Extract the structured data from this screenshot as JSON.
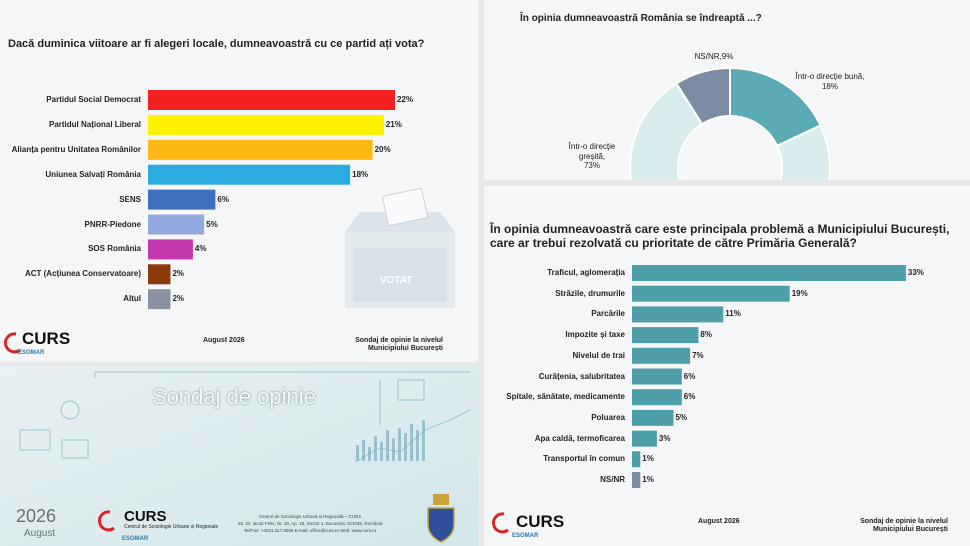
{
  "chart_data": [
    {
      "type": "bar",
      "title": "Dacă duminica viitoare ar fi alegeri locale, dumneavoastră cu ce partid ați vota?",
      "categories": [
        "Partidul Social Democrat",
        "Partidul Național Liberal",
        "Alianța pentru Unitatea Românilor",
        "Uniunea Salvați România",
        "SENS",
        "PNRR-Piedone",
        "SOS România",
        "ACT (Acțiunea Conservatoare)",
        "Altul"
      ],
      "values": [
        22,
        21,
        20,
        18,
        6,
        5,
        4,
        2,
        2
      ],
      "value_labels": [
        "22%",
        "21%",
        "20%",
        "18%",
        "6%",
        "5%",
        "4%",
        "2%",
        "2%"
      ],
      "colors": [
        "#f42020",
        "#fff200",
        "#fdb813",
        "#2aabe2",
        "#3f6fbf",
        "#93a9df",
        "#c23aad",
        "#8b3a0e",
        "#8892a3"
      ]
    },
    {
      "type": "donut",
      "title": "În opinia dumneavoastră România se îndreaptă ...?",
      "categories": [
        "Într-o direcție bună,",
        "Într-o direcție greșită,",
        "NS/NR,"
      ],
      "values": [
        18,
        73,
        9
      ],
      "value_labels": [
        "18%",
        "73%",
        "9%"
      ],
      "colors": [
        "#5aabb5",
        "#d9edef",
        "#7c8ba3"
      ]
    },
    {
      "type": "bar",
      "title": "În opinia dumneavoastră care este principala problemă a Municipiului București, care ar trebui rezolvată cu prioritate de către Primăria Generală?",
      "categories": [
        "Traficul, aglomerația",
        "Străzile, drumurile",
        "Parcările",
        "Impozite și taxe",
        "Nivelul de trai",
        "Curățenia, salubritatea",
        "Spitale, sănătate, medicamente",
        "Poluarea",
        "Apa caldă, termoficarea",
        "Transportul în comun",
        "NS/NR"
      ],
      "values": [
        33,
        19,
        11,
        8,
        7,
        6,
        6,
        5,
        3,
        1,
        1
      ],
      "value_labels": [
        "33%",
        "19%",
        "11%",
        "8%",
        "7%",
        "6%",
        "6%",
        "5%",
        "3%",
        "1%",
        "1%"
      ],
      "colors": [
        "#4f9faa",
        "#4f9faa",
        "#4f9faa",
        "#4f9faa",
        "#4f9faa",
        "#4f9faa",
        "#4f9faa",
        "#4f9faa",
        "#4f9faa",
        "#4f9faa",
        "#7d8aa3"
      ]
    }
  ],
  "slides": {
    "vote": {
      "logo": "CURS",
      "esomar": "ESOMAR",
      "date": "August 2026",
      "source": "Sondaj de opinie la nivelul Municipiului București",
      "ballot": "VOTAT"
    },
    "cover": {
      "title": "Sondaj de opinie",
      "year": "2026",
      "month": "August",
      "logo": "CURS",
      "logo_sub": "Centrul de Sociologie Urbane și Regionale",
      "esomar": "ESOMAR",
      "address": [
        "Centrul de Sociologie Urbană și Regională – CURS",
        "Str. Dr. Iacob Felix, Nr. 29, Ap. 18, Sector 1, București, 011038, România",
        "Tel/Fax: +4021.317.9899  E-mail: office@curs.ro  Web: www.curs.ro"
      ]
    },
    "problems": {
      "logo": "CURS",
      "esomar": "ESOMAR",
      "date": "August 2026",
      "source": "Sondaj de opinie la nivelul Municipiului București"
    }
  }
}
